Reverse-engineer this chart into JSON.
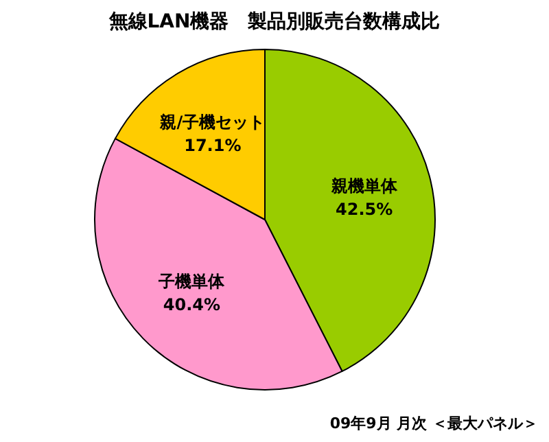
{
  "chart_data": {
    "type": "pie",
    "title": "無線LAN機器　製品別販売台数構成比",
    "categories": [
      "親機単体",
      "子機単体",
      "親/子機セット"
    ],
    "values": [
      42.5,
      40.4,
      17.1
    ],
    "colors": [
      "#99cc00",
      "#ff99cc",
      "#ffcc00"
    ],
    "value_labels": [
      "42.5%",
      "40.4%",
      "17.1%"
    ],
    "annotations": [
      "09年9月 月次 ＜最大パネル＞"
    ]
  }
}
